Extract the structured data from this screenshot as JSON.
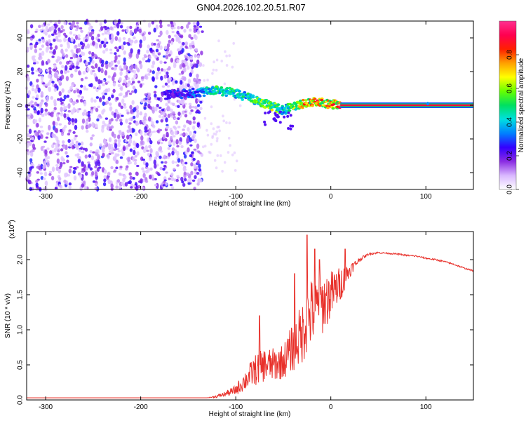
{
  "title": "GN04.2026.102.20.51.R07",
  "chart_data": [
    {
      "type": "heatmap",
      "name": "spectrogram",
      "xlabel": "Height of straight line (km)",
      "ylabel": "Frequency (Hz)",
      "xlim": [
        -320,
        150
      ],
      "ylim": [
        -50,
        50
      ],
      "xticks": [
        -300,
        -200,
        -100,
        0,
        100
      ],
      "yticks": [
        -40,
        -20,
        0,
        20,
        40
      ],
      "xtick_labels": [
        "-300",
        "-200",
        "-100",
        "0",
        "100"
      ],
      "ytick_labels": [
        "-40",
        "-20",
        "0",
        "20",
        "40"
      ],
      "noise_region": [
        -320,
        -135
      ],
      "ridge": {
        "description_points_x": [
          -175,
          -150,
          -130,
          -120,
          -110,
          -100,
          -90,
          -80,
          -70,
          -60,
          -50,
          -42,
          -35,
          -25,
          -15,
          -5,
          10,
          150
        ],
        "frequency": [
          6,
          7,
          8,
          9,
          8,
          7,
          5,
          3,
          1,
          -1,
          -3,
          -1,
          0,
          1,
          2,
          1,
          0,
          0
        ],
        "amplitude": [
          0.25,
          0.3,
          0.45,
          0.55,
          0.5,
          0.5,
          0.5,
          0.55,
          0.6,
          0.65,
          0.45,
          0.55,
          0.65,
          0.8,
          0.85,
          0.75,
          0.9,
          0.95
        ]
      },
      "isolated_spot": {
        "x": 102,
        "y": 1
      }
    },
    {
      "type": "colorbar",
      "label": "Normalized spectral amplitude",
      "range": [
        0,
        1
      ],
      "ticks": [
        0.0,
        0.2,
        0.4,
        0.6,
        0.8
      ],
      "tick_labels": [
        "0.0",
        "0.2",
        "0.4",
        "0.6",
        "0.8"
      ],
      "colors": [
        "#ffffff",
        "#d9b8ff",
        "#8a2be2",
        "#3300ff",
        "#0080ff",
        "#00e0e0",
        "#00e060",
        "#66ff00",
        "#ffff00",
        "#ffa000",
        "#ff2000",
        "#ff0050",
        "#ff3090"
      ]
    },
    {
      "type": "line",
      "name": "snr",
      "xlabel": "Height of straight line (km)",
      "ylabel": "SNR (10 * v/v)",
      "multiplier": "(x10",
      "multiplier_exp": "4",
      "multiplier_close": ")",
      "xlim": [
        -320,
        150
      ],
      "ylim": [
        0,
        24000
      ],
      "xticks": [
        -300,
        -200,
        -100,
        0,
        100
      ],
      "yticks": [
        0,
        5000,
        10000,
        15000,
        20000
      ],
      "xtick_labels": [
        "-300",
        "-200",
        "-100",
        "0",
        "100"
      ],
      "ytick_labels": [
        "0.0",
        "0.5",
        "1.0",
        "1.5",
        "2.0"
      ],
      "color": "#e8302a",
      "x": [
        -320,
        -200,
        -130,
        -120,
        -110,
        -100,
        -90,
        -80,
        -70,
        -60,
        -50,
        -40,
        -30,
        -25,
        -20,
        -10,
        0,
        10,
        20,
        30,
        40,
        50,
        60,
        70,
        80,
        90,
        100,
        110,
        120,
        130,
        140,
        150
      ],
      "y": [
        300,
        300,
        300,
        500,
        900,
        1400,
        2800,
        4200,
        5000,
        5000,
        5500,
        7500,
        9500,
        11500,
        12500,
        13500,
        15000,
        16500,
        18500,
        20000,
        20800,
        21000,
        20900,
        20800,
        20600,
        20500,
        20200,
        20000,
        19700,
        19300,
        18800,
        18400
      ],
      "noise": [
        0,
        0,
        0,
        200,
        400,
        700,
        1500,
        2200,
        2400,
        2400,
        2500,
        3500,
        4500,
        5000,
        5000,
        4500,
        3500,
        2500,
        1000,
        300,
        150,
        120,
        110,
        110,
        110,
        110,
        110,
        110,
        110,
        110,
        100,
        100
      ],
      "peaks": [
        {
          "x": -75,
          "y": 12000
        },
        {
          "x": -38,
          "y": 18000
        },
        {
          "x": -25,
          "y": 23500
        },
        {
          "x": -17,
          "y": 21500
        },
        {
          "x": -12,
          "y": 20000
        },
        {
          "x": 15,
          "y": 21500
        }
      ]
    }
  ]
}
